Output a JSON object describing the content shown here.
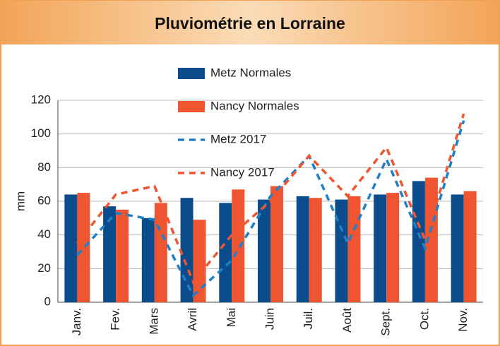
{
  "chart_data": {
    "type": "bar",
    "title": "Pluviométrie en Lorraine",
    "ylabel": "mm",
    "categories": [
      "Janv.",
      "Fev.",
      "Mars",
      "Avril",
      "Mai",
      "Juin",
      "Juil.",
      "Août",
      "Sept.",
      "Oct.",
      "Nov."
    ],
    "series": [
      {
        "name": "Metz Normales",
        "type": "bar",
        "color": "#0b4d8c",
        "values": [
          64,
          57,
          50,
          62,
          59,
          61,
          63,
          61,
          64,
          72,
          64
        ]
      },
      {
        "name": "Nancy Normales",
        "type": "bar",
        "color": "#ef5530",
        "values": [
          65,
          55,
          59,
          49,
          67,
          69,
          62,
          63,
          65,
          74,
          66
        ]
      },
      {
        "name": "Metz 2017",
        "type": "line",
        "dashed": true,
        "color": "#1f80c8",
        "values": [
          28,
          53,
          49,
          4,
          25,
          63,
          87,
          35,
          85,
          32,
          108
        ]
      },
      {
        "name": "Nancy 2017",
        "type": "line",
        "dashed": true,
        "color": "#ef5530",
        "values": [
          35,
          64,
          69,
          12,
          40,
          60,
          87,
          63,
          92,
          37,
          112
        ]
      }
    ],
    "ylim": [
      0,
      120
    ],
    "yticks": [
      0,
      20,
      40,
      60,
      80,
      100,
      120
    ],
    "grid": true,
    "legend": "top"
  }
}
